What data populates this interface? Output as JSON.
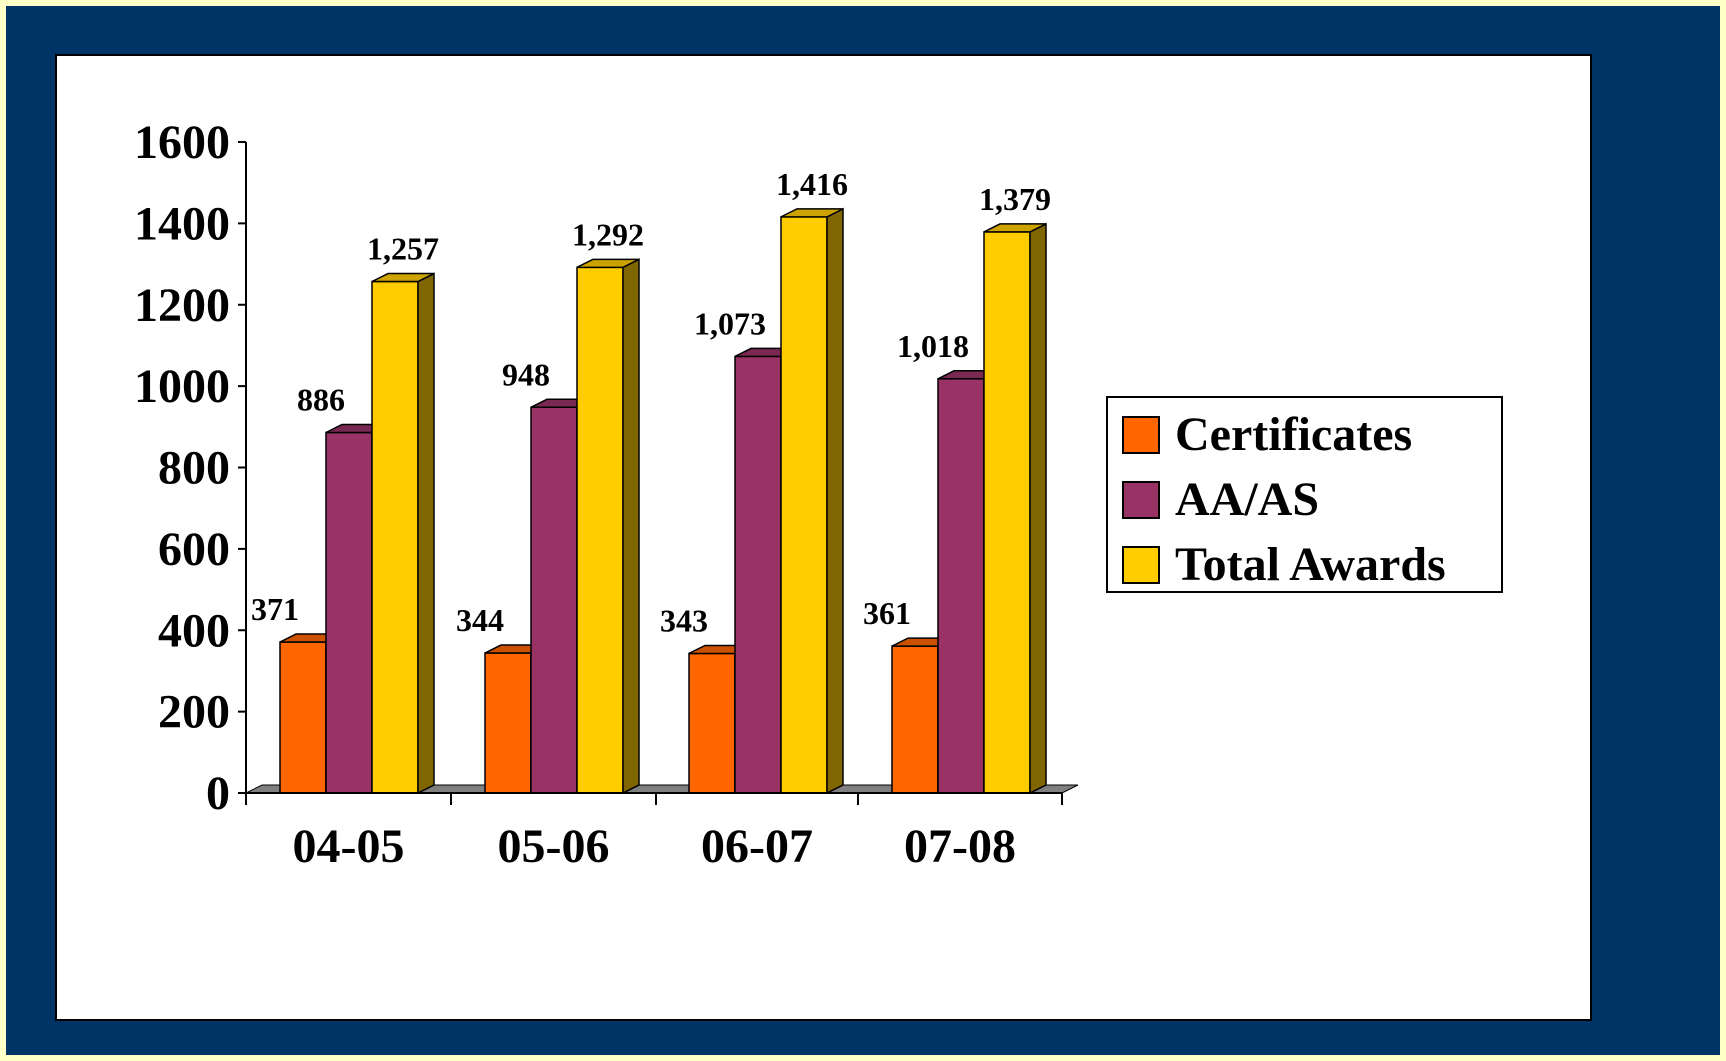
{
  "chart_data": {
    "type": "bar",
    "categories": [
      "04-05",
      "05-06",
      "06-07",
      "07-08"
    ],
    "series": [
      {
        "name": "Certificates",
        "values": [
          371,
          344,
          343,
          361
        ],
        "labels": [
          "371",
          "344",
          "343",
          "361"
        ],
        "color": "#FF6600",
        "side_color": "#993300",
        "top_color": "#CC5200"
      },
      {
        "name": "AA/AS",
        "values": [
          886,
          948,
          1073,
          1018
        ],
        "labels": [
          "886",
          "948",
          "1,073",
          "1,018"
        ],
        "color": "#993366",
        "side_color": "#5C1F3D",
        "top_color": "#7A2952"
      },
      {
        "name": "Total Awards",
        "values": [
          1257,
          1292,
          1416,
          1379
        ],
        "labels": [
          "1,257",
          "1,292",
          "1,416",
          "1,379"
        ],
        "color": "#FFCC00",
        "side_color": "#806600",
        "top_color": "#CCA300"
      }
    ],
    "y_ticks": [
      "0",
      "200",
      "400",
      "600",
      "800",
      "1000",
      "1200",
      "1400",
      "1600"
    ],
    "ylim": [
      0,
      1600
    ],
    "grid": false,
    "legend_position": "right",
    "title": "",
    "xlabel": "",
    "ylabel": ""
  }
}
